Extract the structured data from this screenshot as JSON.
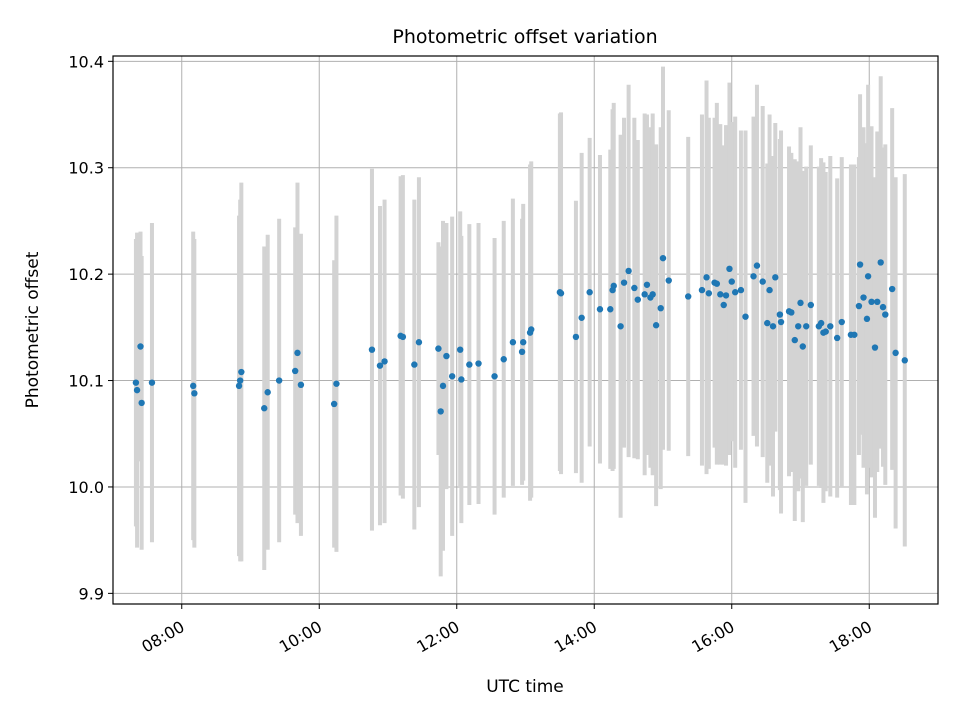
{
  "chart_data": {
    "type": "scatter",
    "title": "Photometric offset variation",
    "xlabel": "UTC time",
    "ylabel": "Photometric offset",
    "xlim": [
      "07:00",
      "19:00"
    ],
    "ylim": [
      9.89,
      10.405
    ],
    "xticks": [
      "08:00",
      "10:00",
      "12:00",
      "14:00",
      "16:00",
      "18:00"
    ],
    "yticks": [
      9.9,
      10.0,
      10.1,
      10.2,
      10.3,
      10.4
    ],
    "ytick_labels": [
      "9.9",
      "10.0",
      "10.1",
      "10.2",
      "10.3",
      "10.4"
    ],
    "grid": true,
    "colors": {
      "point": "#1f77b4",
      "errorbar": "#d3d3d3",
      "grid": "#b0b0b0"
    },
    "points": [
      {
        "t": "07:20",
        "y": 10.098,
        "e": 0.135
      },
      {
        "t": "07:21",
        "y": 10.091,
        "e": 0.148
      },
      {
        "t": "07:24",
        "y": 10.132,
        "e": 0.108
      },
      {
        "t": "07:25",
        "y": 10.079,
        "e": 0.138
      },
      {
        "t": "07:34",
        "y": 10.098,
        "e": 0.15
      },
      {
        "t": "08:10",
        "y": 10.095,
        "e": 0.145
      },
      {
        "t": "08:11",
        "y": 10.088,
        "e": 0.145
      },
      {
        "t": "08:50",
        "y": 10.095,
        "e": 0.16
      },
      {
        "t": "08:51",
        "y": 10.1,
        "e": 0.17
      },
      {
        "t": "08:52",
        "y": 10.108,
        "e": 0.178
      },
      {
        "t": "09:12",
        "y": 10.074,
        "e": 0.152
      },
      {
        "t": "09:15",
        "y": 10.089,
        "e": 0.148
      },
      {
        "t": "09:25",
        "y": 10.1,
        "e": 0.152
      },
      {
        "t": "09:39",
        "y": 10.109,
        "e": 0.135
      },
      {
        "t": "09:41",
        "y": 10.126,
        "e": 0.16
      },
      {
        "t": "09:44",
        "y": 10.096,
        "e": 0.142
      },
      {
        "t": "10:13",
        "y": 10.078,
        "e": 0.135
      },
      {
        "t": "10:15",
        "y": 10.097,
        "e": 0.158
      },
      {
        "t": "10:46",
        "y": 10.129,
        "e": 0.17
      },
      {
        "t": "10:53",
        "y": 10.114,
        "e": 0.15
      },
      {
        "t": "10:57",
        "y": 10.118,
        "e": 0.152
      },
      {
        "t": "11:11",
        "y": 10.142,
        "e": 0.15
      },
      {
        "t": "11:13",
        "y": 10.141,
        "e": 0.152
      },
      {
        "t": "11:23",
        "y": 10.115,
        "e": 0.155
      },
      {
        "t": "11:27",
        "y": 10.136,
        "e": 0.155
      },
      {
        "t": "11:44",
        "y": 10.13,
        "e": 0.1
      },
      {
        "t": "11:46",
        "y": 10.071,
        "e": 0.155
      },
      {
        "t": "11:48",
        "y": 10.095,
        "e": 0.155
      },
      {
        "t": "11:51",
        "y": 10.123,
        "e": 0.125
      },
      {
        "t": "11:56",
        "y": 10.104,
        "e": 0.15
      },
      {
        "t": "12:03",
        "y": 10.129,
        "e": 0.13
      },
      {
        "t": "12:04",
        "y": 10.101,
        "e": 0.135
      },
      {
        "t": "12:11",
        "y": 10.115,
        "e": 0.132
      },
      {
        "t": "12:19",
        "y": 10.116,
        "e": 0.132
      },
      {
        "t": "12:33",
        "y": 10.104,
        "e": 0.13
      },
      {
        "t": "12:41",
        "y": 10.12,
        "e": 0.13
      },
      {
        "t": "12:49",
        "y": 10.136,
        "e": 0.135
      },
      {
        "t": "12:57",
        "y": 10.127,
        "e": 0.125
      },
      {
        "t": "12:58",
        "y": 10.136,
        "e": 0.13
      },
      {
        "t": "13:04",
        "y": 10.145,
        "e": 0.158
      },
      {
        "t": "13:05",
        "y": 10.148,
        "e": 0.158
      },
      {
        "t": "13:30",
        "y": 10.183,
        "e": 0.168
      },
      {
        "t": "13:31",
        "y": 10.182,
        "e": 0.17
      },
      {
        "t": "13:44",
        "y": 10.141,
        "e": 0.128
      },
      {
        "t": "13:49",
        "y": 10.159,
        "e": 0.155
      },
      {
        "t": "13:56",
        "y": 10.183,
        "e": 0.145
      },
      {
        "t": "14:05",
        "y": 10.167,
        "e": 0.145
      },
      {
        "t": "14:14",
        "y": 10.167,
        "e": 0.15
      },
      {
        "t": "14:16",
        "y": 10.185,
        "e": 0.17
      },
      {
        "t": "14:17",
        "y": 10.189,
        "e": 0.172
      },
      {
        "t": "14:23",
        "y": 10.151,
        "e": 0.18
      },
      {
        "t": "14:26",
        "y": 10.192,
        "e": 0.155
      },
      {
        "t": "14:30",
        "y": 10.203,
        "e": 0.175
      },
      {
        "t": "14:35",
        "y": 10.187,
        "e": 0.16
      },
      {
        "t": "14:38",
        "y": 10.176,
        "e": 0.15
      },
      {
        "t": "14:44",
        "y": 10.181,
        "e": 0.17
      },
      {
        "t": "14:46",
        "y": 10.19,
        "e": 0.16
      },
      {
        "t": "14:49",
        "y": 10.178,
        "e": 0.16
      },
      {
        "t": "14:51",
        "y": 10.181,
        "e": 0.17
      },
      {
        "t": "14:54",
        "y": 10.152,
        "e": 0.17
      },
      {
        "t": "14:58",
        "y": 10.168,
        "e": 0.17
      },
      {
        "t": "15:00",
        "y": 10.215,
        "e": 0.18
      },
      {
        "t": "15:05",
        "y": 10.194,
        "e": 0.16
      },
      {
        "t": "15:22",
        "y": 10.179,
        "e": 0.15
      },
      {
        "t": "15:34",
        "y": 10.185,
        "e": 0.165
      },
      {
        "t": "15:38",
        "y": 10.197,
        "e": 0.185
      },
      {
        "t": "15:40",
        "y": 10.182,
        "e": 0.165
      },
      {
        "t": "15:45",
        "y": 10.192,
        "e": 0.155
      },
      {
        "t": "15:47",
        "y": 10.191,
        "e": 0.17
      },
      {
        "t": "15:50",
        "y": 10.181,
        "e": 0.16
      },
      {
        "t": "15:53",
        "y": 10.171,
        "e": 0.15
      },
      {
        "t": "15:55",
        "y": 10.18,
        "e": 0.16
      },
      {
        "t": "15:58",
        "y": 10.205,
        "e": 0.175
      },
      {
        "t": "16:00",
        "y": 10.193,
        "e": 0.15
      },
      {
        "t": "16:03",
        "y": 10.183,
        "e": 0.165
      },
      {
        "t": "16:08",
        "y": 10.185,
        "e": 0.15
      },
      {
        "t": "16:12",
        "y": 10.16,
        "e": 0.175
      },
      {
        "t": "16:19",
        "y": 10.198,
        "e": 0.15
      },
      {
        "t": "16:22",
        "y": 10.208,
        "e": 0.17
      },
      {
        "t": "16:27",
        "y": 10.193,
        "e": 0.165
      },
      {
        "t": "16:31",
        "y": 10.154,
        "e": 0.15
      },
      {
        "t": "16:33",
        "y": 10.185,
        "e": 0.165
      },
      {
        "t": "16:36",
        "y": 10.151,
        "e": 0.16
      },
      {
        "t": "16:38",
        "y": 10.197,
        "e": 0.145
      },
      {
        "t": "16:42",
        "y": 10.162,
        "e": 0.165
      },
      {
        "t": "16:43",
        "y": 10.155,
        "e": 0.18
      },
      {
        "t": "16:50",
        "y": 10.165,
        "e": 0.155
      },
      {
        "t": "16:52",
        "y": 10.164,
        "e": 0.15
      },
      {
        "t": "16:55",
        "y": 10.138,
        "e": 0.17
      },
      {
        "t": "16:58",
        "y": 10.151,
        "e": 0.155
      },
      {
        "t": "17:00",
        "y": 10.173,
        "e": 0.165
      },
      {
        "t": "17:02",
        "y": 10.132,
        "e": 0.165
      },
      {
        "t": "17:05",
        "y": 10.151,
        "e": 0.15
      },
      {
        "t": "17:09",
        "y": 10.171,
        "e": 0.15
      },
      {
        "t": "17:16",
        "y": 10.151,
        "e": 0.15
      },
      {
        "t": "17:18",
        "y": 10.154,
        "e": 0.155
      },
      {
        "t": "17:20",
        "y": 10.145,
        "e": 0.16
      },
      {
        "t": "17:22",
        "y": 10.146,
        "e": 0.15
      },
      {
        "t": "17:26",
        "y": 10.151,
        "e": 0.16
      },
      {
        "t": "17:32",
        "y": 10.14,
        "e": 0.15
      },
      {
        "t": "17:36",
        "y": 10.155,
        "e": 0.155
      },
      {
        "t": "17:44",
        "y": 10.143,
        "e": 0.16
      },
      {
        "t": "17:47",
        "y": 10.143,
        "e": 0.16
      },
      {
        "t": "17:51",
        "y": 10.17,
        "e": 0.14
      },
      {
        "t": "17:52",
        "y": 10.209,
        "e": 0.16
      },
      {
        "t": "17:55",
        "y": 10.178,
        "e": 0.16
      },
      {
        "t": "17:58",
        "y": 10.158,
        "e": 0.165
      },
      {
        "t": "17:59",
        "y": 10.198,
        "e": 0.18
      },
      {
        "t": "18:02",
        "y": 10.174,
        "e": 0.165
      },
      {
        "t": "18:05",
        "y": 10.131,
        "e": 0.16
      },
      {
        "t": "18:07",
        "y": 10.174,
        "e": 0.16
      },
      {
        "t": "18:10",
        "y": 10.211,
        "e": 0.175
      },
      {
        "t": "18:12",
        "y": 10.169,
        "e": 0.15
      },
      {
        "t": "18:14",
        "y": 10.162,
        "e": 0.16
      },
      {
        "t": "18:20",
        "y": 10.186,
        "e": 0.17
      },
      {
        "t": "18:23",
        "y": 10.126,
        "e": 0.165
      },
      {
        "t": "18:31",
        "y": 10.119,
        "e": 0.175
      }
    ]
  }
}
